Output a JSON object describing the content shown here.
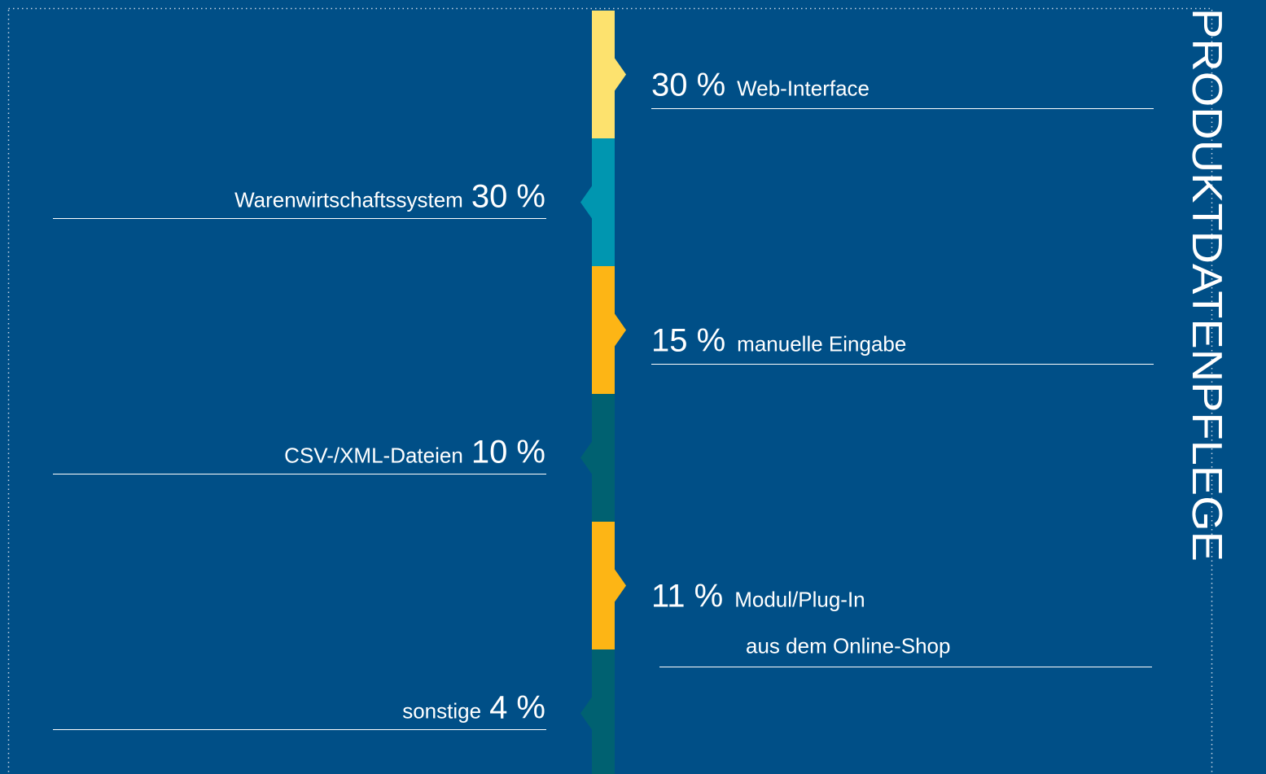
{
  "title": "PRODUKTDATENPFLEGE",
  "items": [
    {
      "value": "30 %",
      "lines": [
        "Web-Interface"
      ]
    },
    {
      "value": "30 %",
      "lines": [
        "Warenwirtschaftssystem"
      ]
    },
    {
      "value": "15 %",
      "lines": [
        "manuelle Eingabe"
      ]
    },
    {
      "value": "10 %",
      "lines": [
        "CSV-/XML-Dateien"
      ]
    },
    {
      "value": "11 %",
      "lines": [
        "Modul/Plug-In",
        "aus dem Online-Shop"
      ]
    },
    {
      "value": "4 %",
      "lines": [
        "sonstige"
      ]
    }
  ]
}
